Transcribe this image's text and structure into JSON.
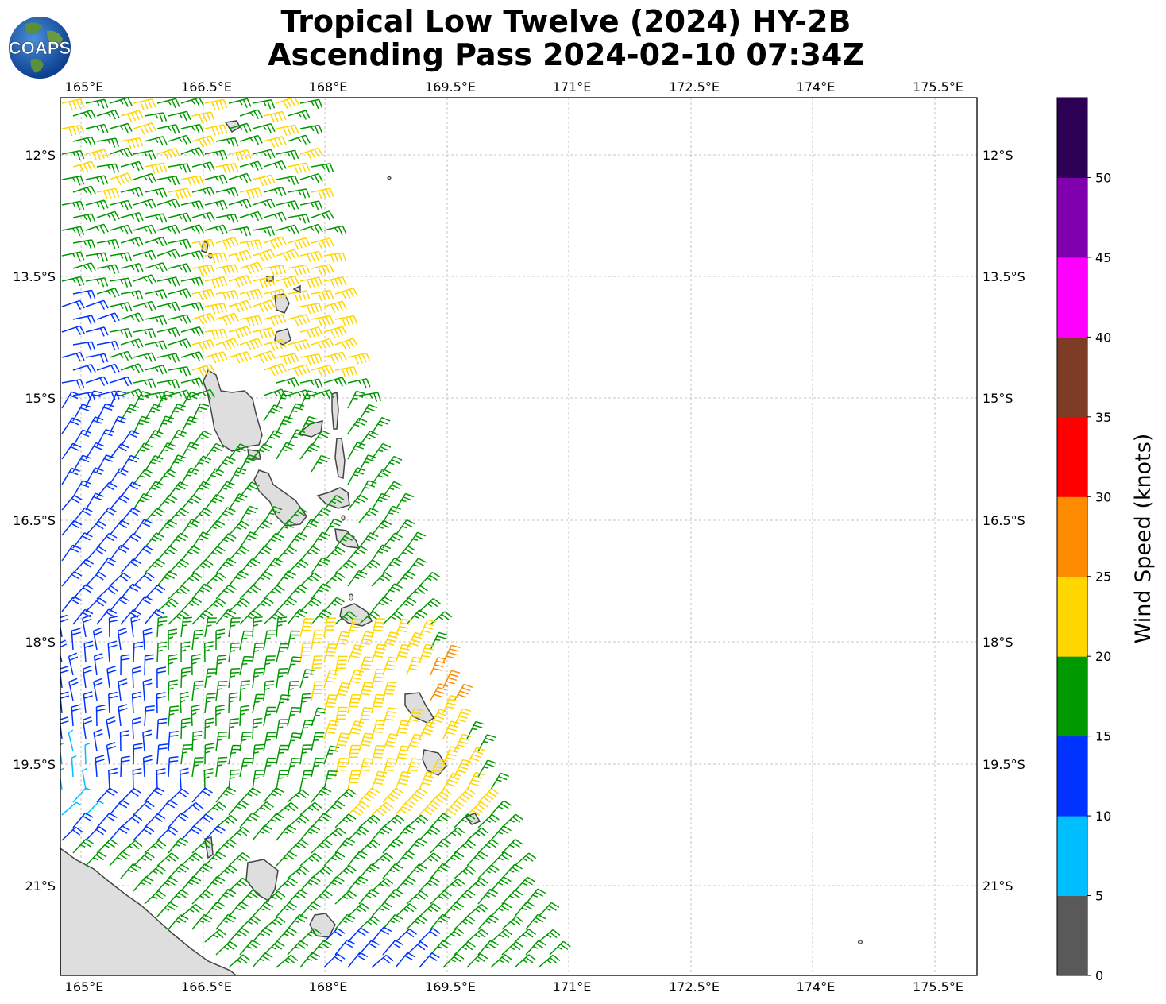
{
  "title": {
    "line1": "Tropical Low Twelve (2024) HY-2B",
    "line2": "Ascending Pass 2024-02-10 07:34Z"
  },
  "logo": {
    "text": "COAPS",
    "icon": "globe-logo-icon"
  },
  "map": {
    "lon_ticks": [
      "165°E",
      "166.5°E",
      "168°E",
      "169.5°E",
      "171°E",
      "172.5°E",
      "174°E",
      "175.5°E"
    ],
    "lat_ticks": [
      "12°S",
      "13.5°S",
      "15°S",
      "16.5°S",
      "18°S",
      "19.5°S",
      "21°S"
    ],
    "gridlines": true
  },
  "colorbar": {
    "label": "Wind Speed (knots)",
    "ticks": [
      "0",
      "5",
      "10",
      "15",
      "20",
      "25",
      "30",
      "35",
      "40",
      "45",
      "50"
    ],
    "colors": [
      "#595959",
      "#00bfff",
      "#0033ff",
      "#009900",
      "#ffd600",
      "#ff8c00",
      "#ff0000",
      "#7e3b26",
      "#ff00ff",
      "#8000b0",
      "#2b0055"
    ]
  }
}
